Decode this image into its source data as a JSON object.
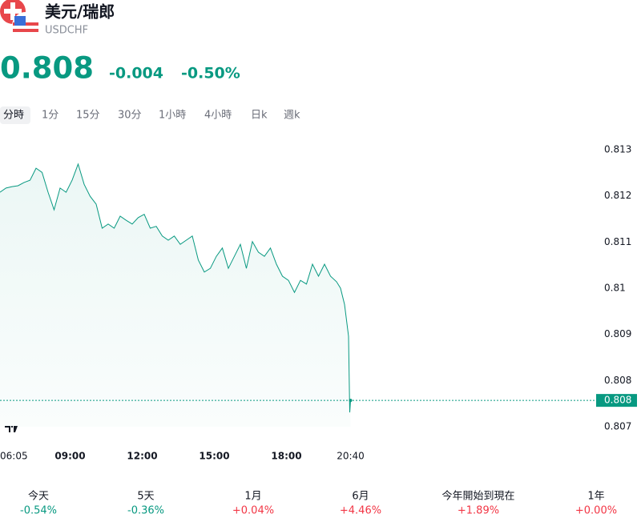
{
  "header": {
    "title": "美元/瑞郎",
    "symbol": "USDCHF"
  },
  "quote": {
    "price": "0.808",
    "change": "-0.004",
    "change_pct": "-0.50%"
  },
  "colors": {
    "up": "#f23645",
    "down": "#089981"
  },
  "tabs": {
    "items": [
      "分時",
      "1分",
      "15分",
      "30分",
      "1小時",
      "4小時",
      "日k",
      "週k"
    ],
    "selected": 0
  },
  "chart_data": {
    "type": "line",
    "x": [
      "06:05",
      "06:20",
      "06:35",
      "06:50",
      "07:05",
      "07:20",
      "07:35",
      "07:50",
      "08:05",
      "08:20",
      "08:35",
      "08:50",
      "09:05",
      "09:20",
      "09:35",
      "09:50",
      "10:05",
      "10:20",
      "10:35",
      "10:50",
      "11:05",
      "11:20",
      "11:35",
      "11:50",
      "12:05",
      "12:20",
      "12:35",
      "12:50",
      "13:05",
      "13:20",
      "13:35",
      "13:50",
      "14:05",
      "14:20",
      "14:35",
      "14:50",
      "15:05",
      "15:20",
      "15:35",
      "15:50",
      "16:05",
      "16:20",
      "16:35",
      "16:50",
      "17:05",
      "17:20",
      "17:35",
      "17:50",
      "18:05",
      "18:20",
      "18:35",
      "18:50",
      "19:05",
      "19:20",
      "19:35",
      "19:50",
      "20:05",
      "20:15",
      "20:25",
      "20:35",
      "20:38",
      "20:40"
    ],
    "series": [
      {
        "name": "USDCHF",
        "color": "#089981",
        "values": [
          0.81208,
          0.81217,
          0.8122,
          0.81222,
          0.81229,
          0.81234,
          0.8126,
          0.81251,
          0.81208,
          0.8117,
          0.81217,
          0.81208,
          0.81234,
          0.81269,
          0.81225,
          0.81199,
          0.81182,
          0.8113,
          0.81139,
          0.8113,
          0.81156,
          0.81147,
          0.81139,
          0.81153,
          0.8116,
          0.8113,
          0.81134,
          0.81113,
          0.81104,
          0.81113,
          0.81095,
          0.81104,
          0.81113,
          0.81061,
          0.81035,
          0.81043,
          0.81069,
          0.81087,
          0.81043,
          0.81069,
          0.81095,
          0.81043,
          0.81101,
          0.81078,
          0.81069,
          0.81087,
          0.81052,
          0.81026,
          0.81017,
          0.80991,
          0.81017,
          0.81009,
          0.81052,
          0.81026,
          0.81052,
          0.81026,
          0.81014,
          0.81,
          0.80965,
          0.80896,
          0.80731,
          0.80757
        ]
      }
    ],
    "ylim": [
      0.807,
      0.813
    ],
    "yticks": [
      0.807,
      0.808,
      0.809,
      0.81,
      0.811,
      0.812,
      0.813
    ],
    "xticks": [
      "06:05",
      "09:00",
      "12:00",
      "15:00",
      "18:00",
      "20:40"
    ],
    "last_label": "0.808"
  },
  "performance": [
    {
      "label": "今天",
      "value": "-0.54%"
    },
    {
      "label": "5天",
      "value": "-0.36%"
    },
    {
      "label": "1月",
      "value": "+0.04%"
    },
    {
      "label": "6月",
      "value": "+4.46%"
    },
    {
      "label": "今年開始到現在",
      "value": "+1.89%"
    },
    {
      "label": "1年",
      "value": "+0.00%"
    }
  ]
}
